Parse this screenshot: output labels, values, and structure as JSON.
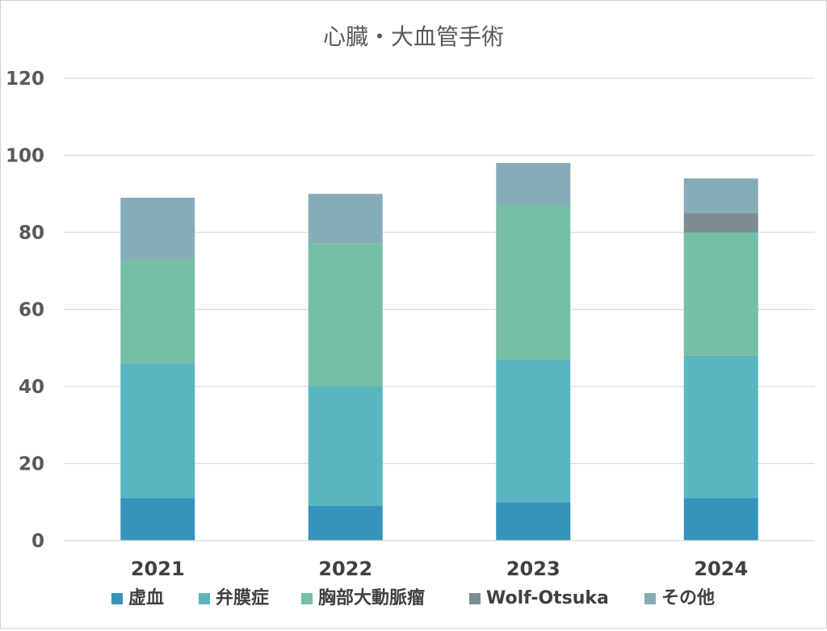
{
  "chart_data": {
    "type": "bar",
    "stacked": true,
    "title": "心臓・大血管手術",
    "xlabel": "",
    "ylabel": "",
    "ylim": [
      0,
      120
    ],
    "yticks": [
      0,
      20,
      40,
      60,
      80,
      100,
      120
    ],
    "grid": true,
    "legend_position": "bottom",
    "categories": [
      "2021",
      "2022",
      "2023",
      "2024"
    ],
    "series": [
      {
        "name": "虚血",
        "color": "#3694BB",
        "values": [
          11,
          9,
          10,
          11
        ]
      },
      {
        "name": "弁膜症",
        "color": "#59B6C1",
        "values": [
          35,
          31,
          37,
          37
        ]
      },
      {
        "name": "胸部大動脈瘤",
        "color": "#76BEA6",
        "values": [
          27,
          37,
          40,
          32
        ]
      },
      {
        "name": "Wolf-Otsuka",
        "color": "#7C8C92",
        "values": [
          0,
          0,
          0,
          5
        ]
      },
      {
        "name": "その他",
        "color": "#86ADB7",
        "values": [
          16,
          13,
          11,
          9
        ]
      }
    ]
  }
}
